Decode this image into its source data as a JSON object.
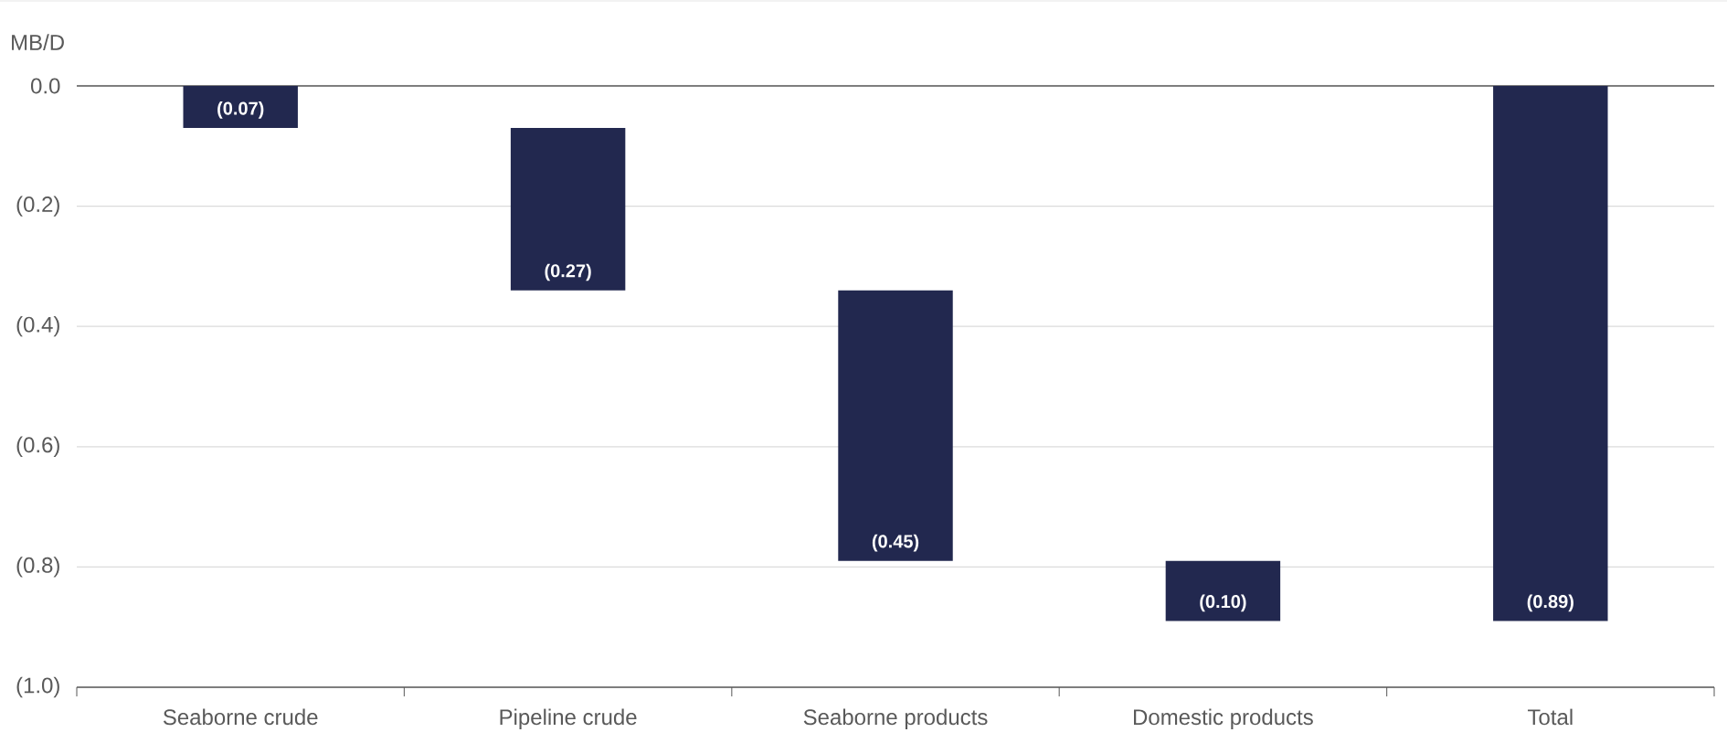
{
  "chart_data": {
    "type": "bar",
    "ylabel": "MB/D",
    "categories": [
      "Seaborne crude",
      "Pipeline crude",
      "Seaborne products",
      "Domestic products",
      "Total"
    ],
    "values": [
      -0.07,
      -0.27,
      -0.45,
      -0.1,
      -0.89
    ],
    "base": [
      0,
      -0.07,
      -0.34,
      -0.79,
      0
    ],
    "value_labels": [
      "(0.07)",
      "(0.27)",
      "(0.45)",
      "(0.10)",
      "(0.89)"
    ],
    "color": "#22284f",
    "ylim": [
      -1.0,
      0.0
    ],
    "yticks": [
      {
        "value": -1.0,
        "label": "(1.0)"
      },
      {
        "value": -0.8,
        "label": "(0.8)"
      },
      {
        "value": -0.6,
        "label": "(0.6)"
      },
      {
        "value": -0.4,
        "label": "(0.4)"
      },
      {
        "value": -0.2,
        "label": "(0.2)"
      },
      {
        "value": 0.0,
        "label": "0.0"
      }
    ],
    "grid": "y"
  }
}
